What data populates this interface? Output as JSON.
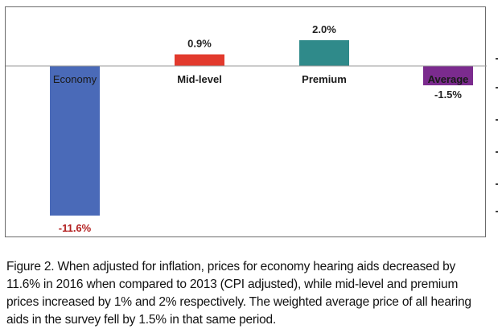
{
  "chart_data": {
    "type": "bar",
    "categories": [
      "Economy",
      "Mid-level",
      "Premium",
      "Average"
    ],
    "values": [
      -11.6,
      0.9,
      2.0,
      -1.5
    ],
    "value_labels": [
      "-11.6%",
      "0.9%",
      "2.0%",
      "-1.5%"
    ],
    "colors": [
      "#4a6ab8",
      "#e23a2d",
      "#2f8a8a",
      "#7b2b8e"
    ],
    "value_label_colors": [
      "#b32020",
      "#222222",
      "#222222",
      "#222222"
    ],
    "ylim": [
      -11.6,
      2.0
    ],
    "grid": false,
    "legend": "none"
  },
  "caption": "Figure 2. When adjusted for inflation, prices for economy hearing aids decreased by 11.6% in 2016 when compared to 2013 (CPI adjusted), while mid-level and premium prices increased by 1% and 2% respectively. The weighted average price of all hearing aids in the survey fell by 1.5% in that same period."
}
